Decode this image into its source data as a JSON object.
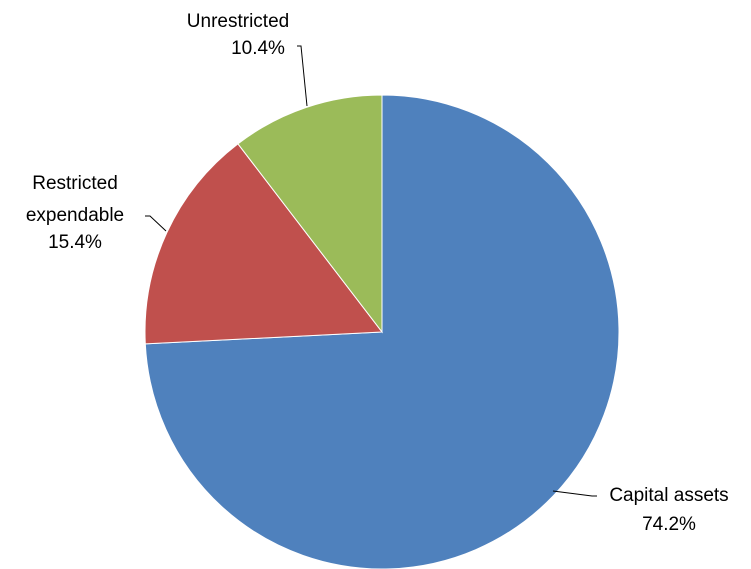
{
  "chart_data": {
    "type": "pie",
    "title": "",
    "slices": [
      {
        "name": "Capital assets",
        "value": 74.2,
        "label": "74.2%",
        "color": "#4F81BD"
      },
      {
        "name": "Restricted expendable",
        "value": 15.4,
        "label": "15.4%",
        "color": "#C0504D"
      },
      {
        "name": "Unrestricted",
        "value": 10.4,
        "label": "10.4%",
        "color": "#9BBB59"
      }
    ],
    "start": "12 o'clock",
    "direction": "clockwise",
    "legend": "none",
    "data_labels": "outside with leader lines"
  },
  "labels": {
    "capital_name": "Capital assets",
    "capital_pct": "74.2%",
    "restricted_name_line1": "Restricted",
    "restricted_name_line2": "expendable",
    "restricted_pct": "15.4%",
    "unrestricted_name": "Unrestricted",
    "unrestricted_pct": "10.4%"
  }
}
